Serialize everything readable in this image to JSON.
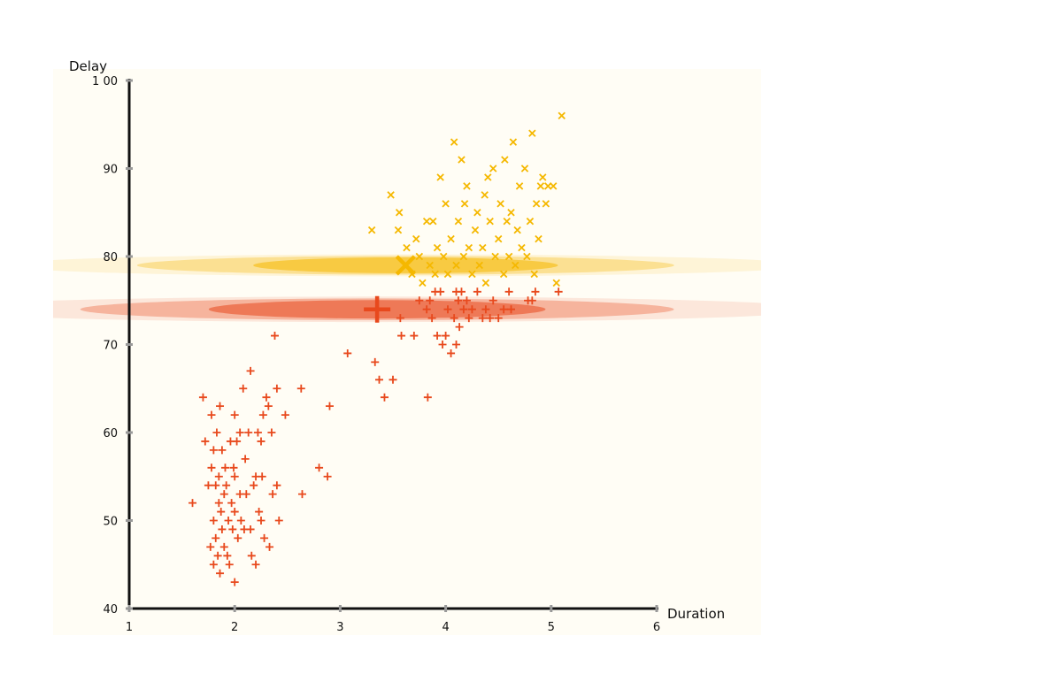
{
  "chart_data": {
    "type": "scatter",
    "title": "",
    "xlabel": "Duration",
    "ylabel": "Delay",
    "xlim": [
      1,
      6
    ],
    "ylim": [
      40,
      100
    ],
    "x_ticks": [
      1,
      2,
      3,
      4,
      5,
      6
    ],
    "y_ticks": [
      40,
      50,
      60,
      70,
      80,
      90,
      100
    ],
    "x_tick_labels": [
      "1",
      "2",
      "3",
      "4",
      "5",
      "6"
    ],
    "y_tick_labels": [
      "40",
      "50",
      "60",
      "70",
      "80",
      "90",
      "1 00"
    ],
    "grid": false,
    "legend": "none",
    "background_color": "#fffdf5",
    "series": [
      {
        "marker": "plus",
        "color": "#e8491d",
        "centroid": [
          3.35,
          74
        ],
        "cluster_spread": [
          4.2,
          1.45
        ],
        "points": [
          [
            1.6,
            52
          ],
          [
            1.7,
            64
          ],
          [
            1.72,
            59
          ],
          [
            1.75,
            54
          ],
          [
            1.77,
            47
          ],
          [
            1.78,
            62
          ],
          [
            1.78,
            56
          ],
          [
            1.8,
            45
          ],
          [
            1.8,
            50
          ],
          [
            1.8,
            58
          ],
          [
            1.82,
            54
          ],
          [
            1.82,
            48
          ],
          [
            1.83,
            60
          ],
          [
            1.84,
            46
          ],
          [
            1.85,
            52
          ],
          [
            1.85,
            55
          ],
          [
            1.86,
            63
          ],
          [
            1.86,
            44
          ],
          [
            1.87,
            51
          ],
          [
            1.88,
            58
          ],
          [
            1.88,
            49
          ],
          [
            1.9,
            53
          ],
          [
            1.9,
            47
          ],
          [
            1.91,
            56
          ],
          [
            1.92,
            54
          ],
          [
            1.93,
            46
          ],
          [
            1.94,
            50
          ],
          [
            1.95,
            45
          ],
          [
            1.96,
            59
          ],
          [
            1.97,
            52
          ],
          [
            1.98,
            49
          ],
          [
            1.99,
            56
          ],
          [
            2.0,
            62
          ],
          [
            2.0,
            55
          ],
          [
            2.0,
            51
          ],
          [
            2.0,
            43
          ],
          [
            2.02,
            59
          ],
          [
            2.03,
            48
          ],
          [
            2.05,
            53
          ],
          [
            2.05,
            60
          ],
          [
            2.06,
            50
          ],
          [
            2.08,
            65
          ],
          [
            2.09,
            49
          ],
          [
            2.1,
            57
          ],
          [
            2.11,
            53
          ],
          [
            2.13,
            60
          ],
          [
            2.15,
            67
          ],
          [
            2.15,
            49
          ],
          [
            2.16,
            46
          ],
          [
            2.18,
            54
          ],
          [
            2.2,
            55
          ],
          [
            2.2,
            45
          ],
          [
            2.22,
            60
          ],
          [
            2.23,
            51
          ],
          [
            2.25,
            59
          ],
          [
            2.25,
            50
          ],
          [
            2.26,
            55
          ],
          [
            2.27,
            62
          ],
          [
            2.28,
            48
          ],
          [
            2.3,
            64
          ],
          [
            2.32,
            63
          ],
          [
            2.33,
            47
          ],
          [
            2.35,
            60
          ],
          [
            2.36,
            53
          ],
          [
            2.38,
            71
          ],
          [
            2.4,
            65
          ],
          [
            2.4,
            54
          ],
          [
            2.42,
            50
          ],
          [
            2.48,
            62
          ],
          [
            2.63,
            65
          ],
          [
            2.64,
            53
          ],
          [
            2.8,
            56
          ],
          [
            2.88,
            55
          ],
          [
            2.9,
            63
          ],
          [
            3.07,
            69
          ],
          [
            3.33,
            68
          ],
          [
            3.37,
            66
          ],
          [
            3.42,
            64
          ],
          [
            3.5,
            66
          ],
          [
            3.57,
            73
          ],
          [
            3.58,
            71
          ],
          [
            3.7,
            71
          ],
          [
            3.75,
            75
          ],
          [
            3.82,
            74
          ],
          [
            3.83,
            64
          ],
          [
            3.85,
            75
          ],
          [
            3.87,
            73
          ],
          [
            3.9,
            76
          ],
          [
            3.92,
            71
          ],
          [
            3.95,
            76
          ],
          [
            3.97,
            70
          ],
          [
            4.0,
            71
          ],
          [
            4.02,
            74
          ],
          [
            4.05,
            69
          ],
          [
            4.08,
            73
          ],
          [
            4.1,
            70
          ],
          [
            4.1,
            76
          ],
          [
            4.12,
            75
          ],
          [
            4.13,
            72
          ],
          [
            4.15,
            76
          ],
          [
            4.17,
            74
          ],
          [
            4.2,
            75
          ],
          [
            4.22,
            73
          ],
          [
            4.25,
            74
          ],
          [
            4.3,
            76
          ],
          [
            4.35,
            73
          ],
          [
            4.38,
            74
          ],
          [
            4.42,
            73
          ],
          [
            4.45,
            75
          ],
          [
            4.5,
            73
          ],
          [
            4.55,
            74
          ],
          [
            4.6,
            76
          ],
          [
            4.62,
            74
          ],
          [
            4.78,
            75
          ],
          [
            4.82,
            75
          ],
          [
            4.85,
            76
          ],
          [
            5.07,
            76
          ]
        ]
      },
      {
        "marker": "cross",
        "color": "#f5b800",
        "centroid": [
          3.62,
          79
        ],
        "cluster_spread": [
          3.8,
          1.25
        ],
        "points": [
          [
            3.3,
            83
          ],
          [
            3.48,
            87
          ],
          [
            3.55,
            83
          ],
          [
            3.56,
            85
          ],
          [
            3.62,
            79
          ],
          [
            3.63,
            81
          ],
          [
            3.68,
            78
          ],
          [
            3.72,
            82
          ],
          [
            3.75,
            80
          ],
          [
            3.78,
            77
          ],
          [
            3.82,
            84
          ],
          [
            3.85,
            79
          ],
          [
            3.88,
            84
          ],
          [
            3.9,
            78
          ],
          [
            3.92,
            81
          ],
          [
            3.95,
            89
          ],
          [
            3.98,
            80
          ],
          [
            4.0,
            86
          ],
          [
            4.02,
            78
          ],
          [
            4.05,
            82
          ],
          [
            4.08,
            93
          ],
          [
            4.1,
            79
          ],
          [
            4.12,
            84
          ],
          [
            4.15,
            91
          ],
          [
            4.17,
            80
          ],
          [
            4.18,
            86
          ],
          [
            4.2,
            88
          ],
          [
            4.22,
            81
          ],
          [
            4.25,
            78
          ],
          [
            4.28,
            83
          ],
          [
            4.3,
            85
          ],
          [
            4.32,
            79
          ],
          [
            4.35,
            81
          ],
          [
            4.37,
            87
          ],
          [
            4.38,
            77
          ],
          [
            4.4,
            89
          ],
          [
            4.42,
            84
          ],
          [
            4.45,
            90
          ],
          [
            4.47,
            80
          ],
          [
            4.5,
            82
          ],
          [
            4.52,
            86
          ],
          [
            4.55,
            78
          ],
          [
            4.56,
            91
          ],
          [
            4.58,
            84
          ],
          [
            4.6,
            80
          ],
          [
            4.62,
            85
          ],
          [
            4.64,
            93
          ],
          [
            4.66,
            79
          ],
          [
            4.68,
            83
          ],
          [
            4.7,
            88
          ],
          [
            4.72,
            81
          ],
          [
            4.75,
            90
          ],
          [
            4.77,
            80
          ],
          [
            4.8,
            84
          ],
          [
            4.82,
            94
          ],
          [
            4.84,
            78
          ],
          [
            4.86,
            86
          ],
          [
            4.88,
            82
          ],
          [
            4.9,
            88
          ],
          [
            4.92,
            89
          ],
          [
            4.95,
            86
          ],
          [
            4.97,
            88
          ],
          [
            5.02,
            88
          ],
          [
            5.05,
            77
          ],
          [
            5.1,
            96
          ]
        ]
      }
    ]
  }
}
